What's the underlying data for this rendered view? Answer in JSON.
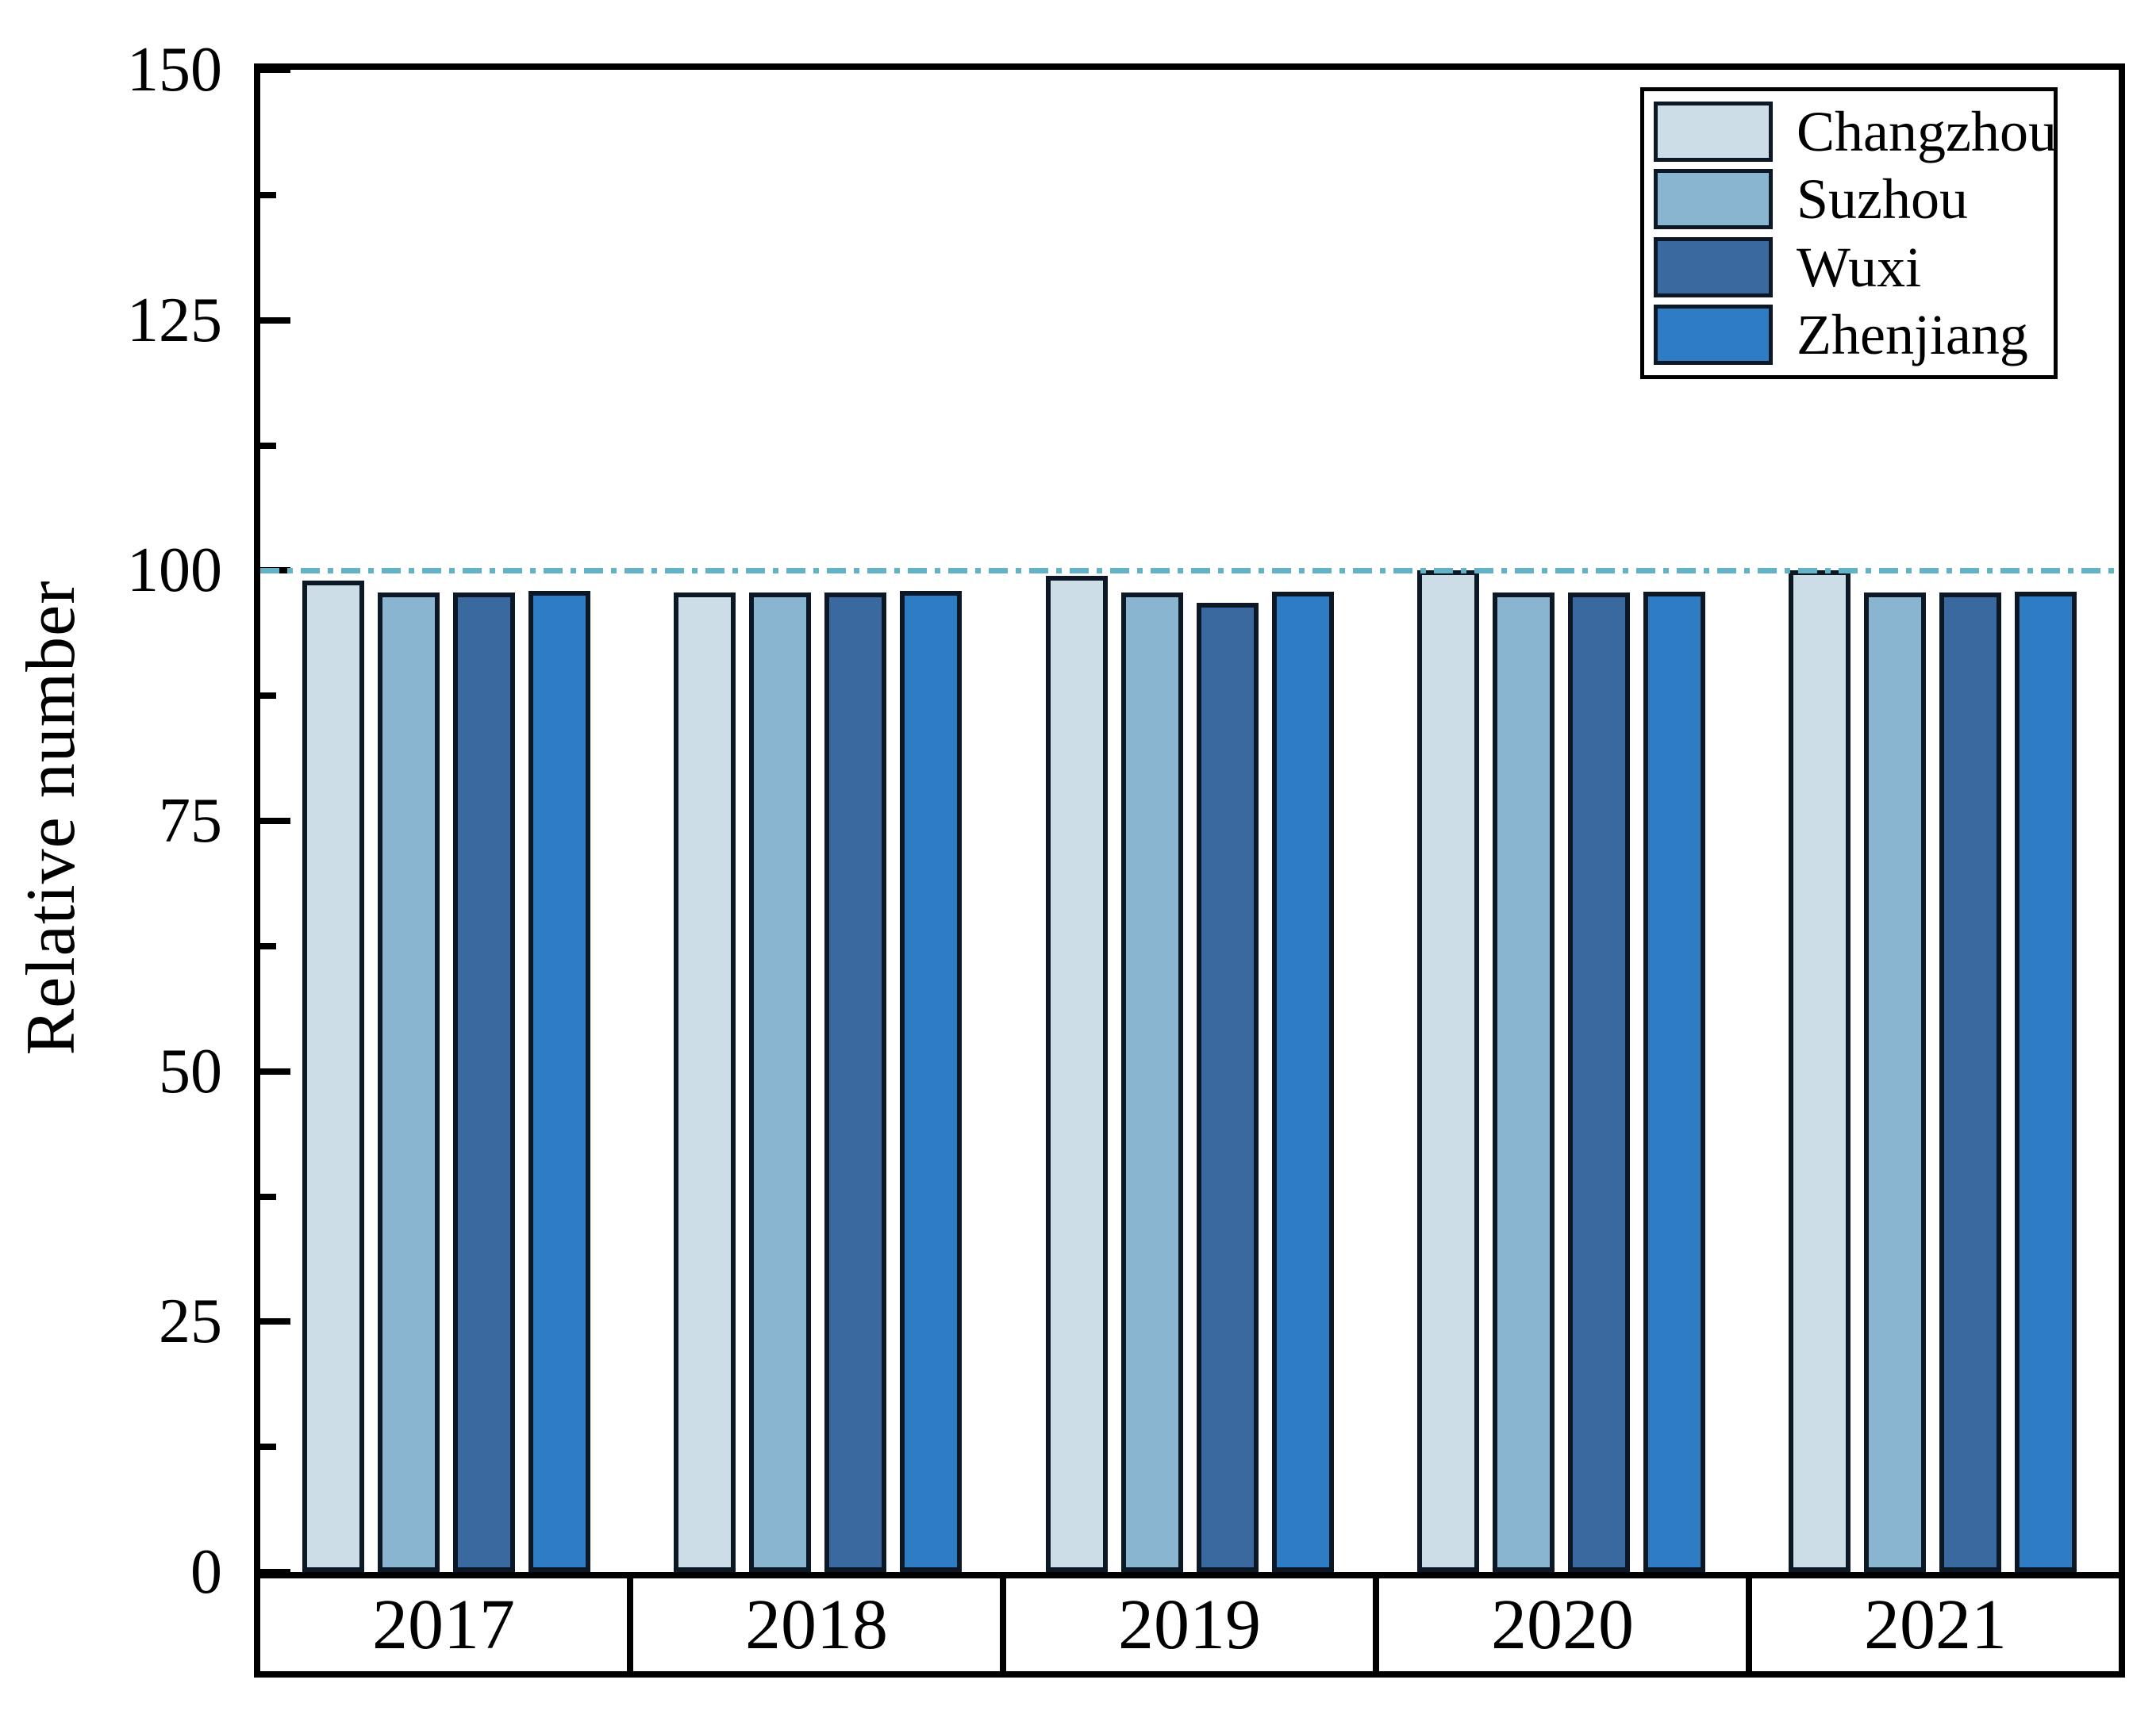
{
  "chart_data": {
    "type": "bar",
    "title": "",
    "xlabel": "",
    "ylabel": "Relative number",
    "ylim": [
      0,
      150
    ],
    "yticks": [
      0,
      25,
      50,
      75,
      100,
      125,
      150
    ],
    "ytick_labels": [
      "0",
      "25",
      "50",
      "75",
      "100",
      "125",
      "150"
    ],
    "minor_yticks": [
      12.5,
      37.5,
      62.5,
      87.5,
      112.5,
      137.5
    ],
    "grid": false,
    "legend_position": "top-right-inside",
    "categories": [
      "2017",
      "2018",
      "2019",
      "2020",
      "2021"
    ],
    "series": [
      {
        "name": "Changzhou",
        "color": "#ccdde8",
        "values": [
          99.0,
          97.8,
          99.5,
          100.0,
          100.0
        ]
      },
      {
        "name": "Suzhou",
        "color": "#89b5d1",
        "values": [
          97.8,
          97.8,
          97.8,
          97.8,
          97.8
        ]
      },
      {
        "name": "Wuxi",
        "color": "#3a699f",
        "values": [
          97.8,
          97.8,
          96.8,
          97.8,
          97.8
        ]
      },
      {
        "name": "Zhenjiang",
        "color": "#2d7cc4",
        "values": [
          98.0,
          98.0,
          97.9,
          97.9,
          97.9
        ]
      }
    ],
    "reference_line": {
      "value": 100,
      "color": "#63b2c6",
      "style": "dash-dot"
    },
    "bar_edge_color": "#0d1826",
    "axis_color": "#000000"
  }
}
